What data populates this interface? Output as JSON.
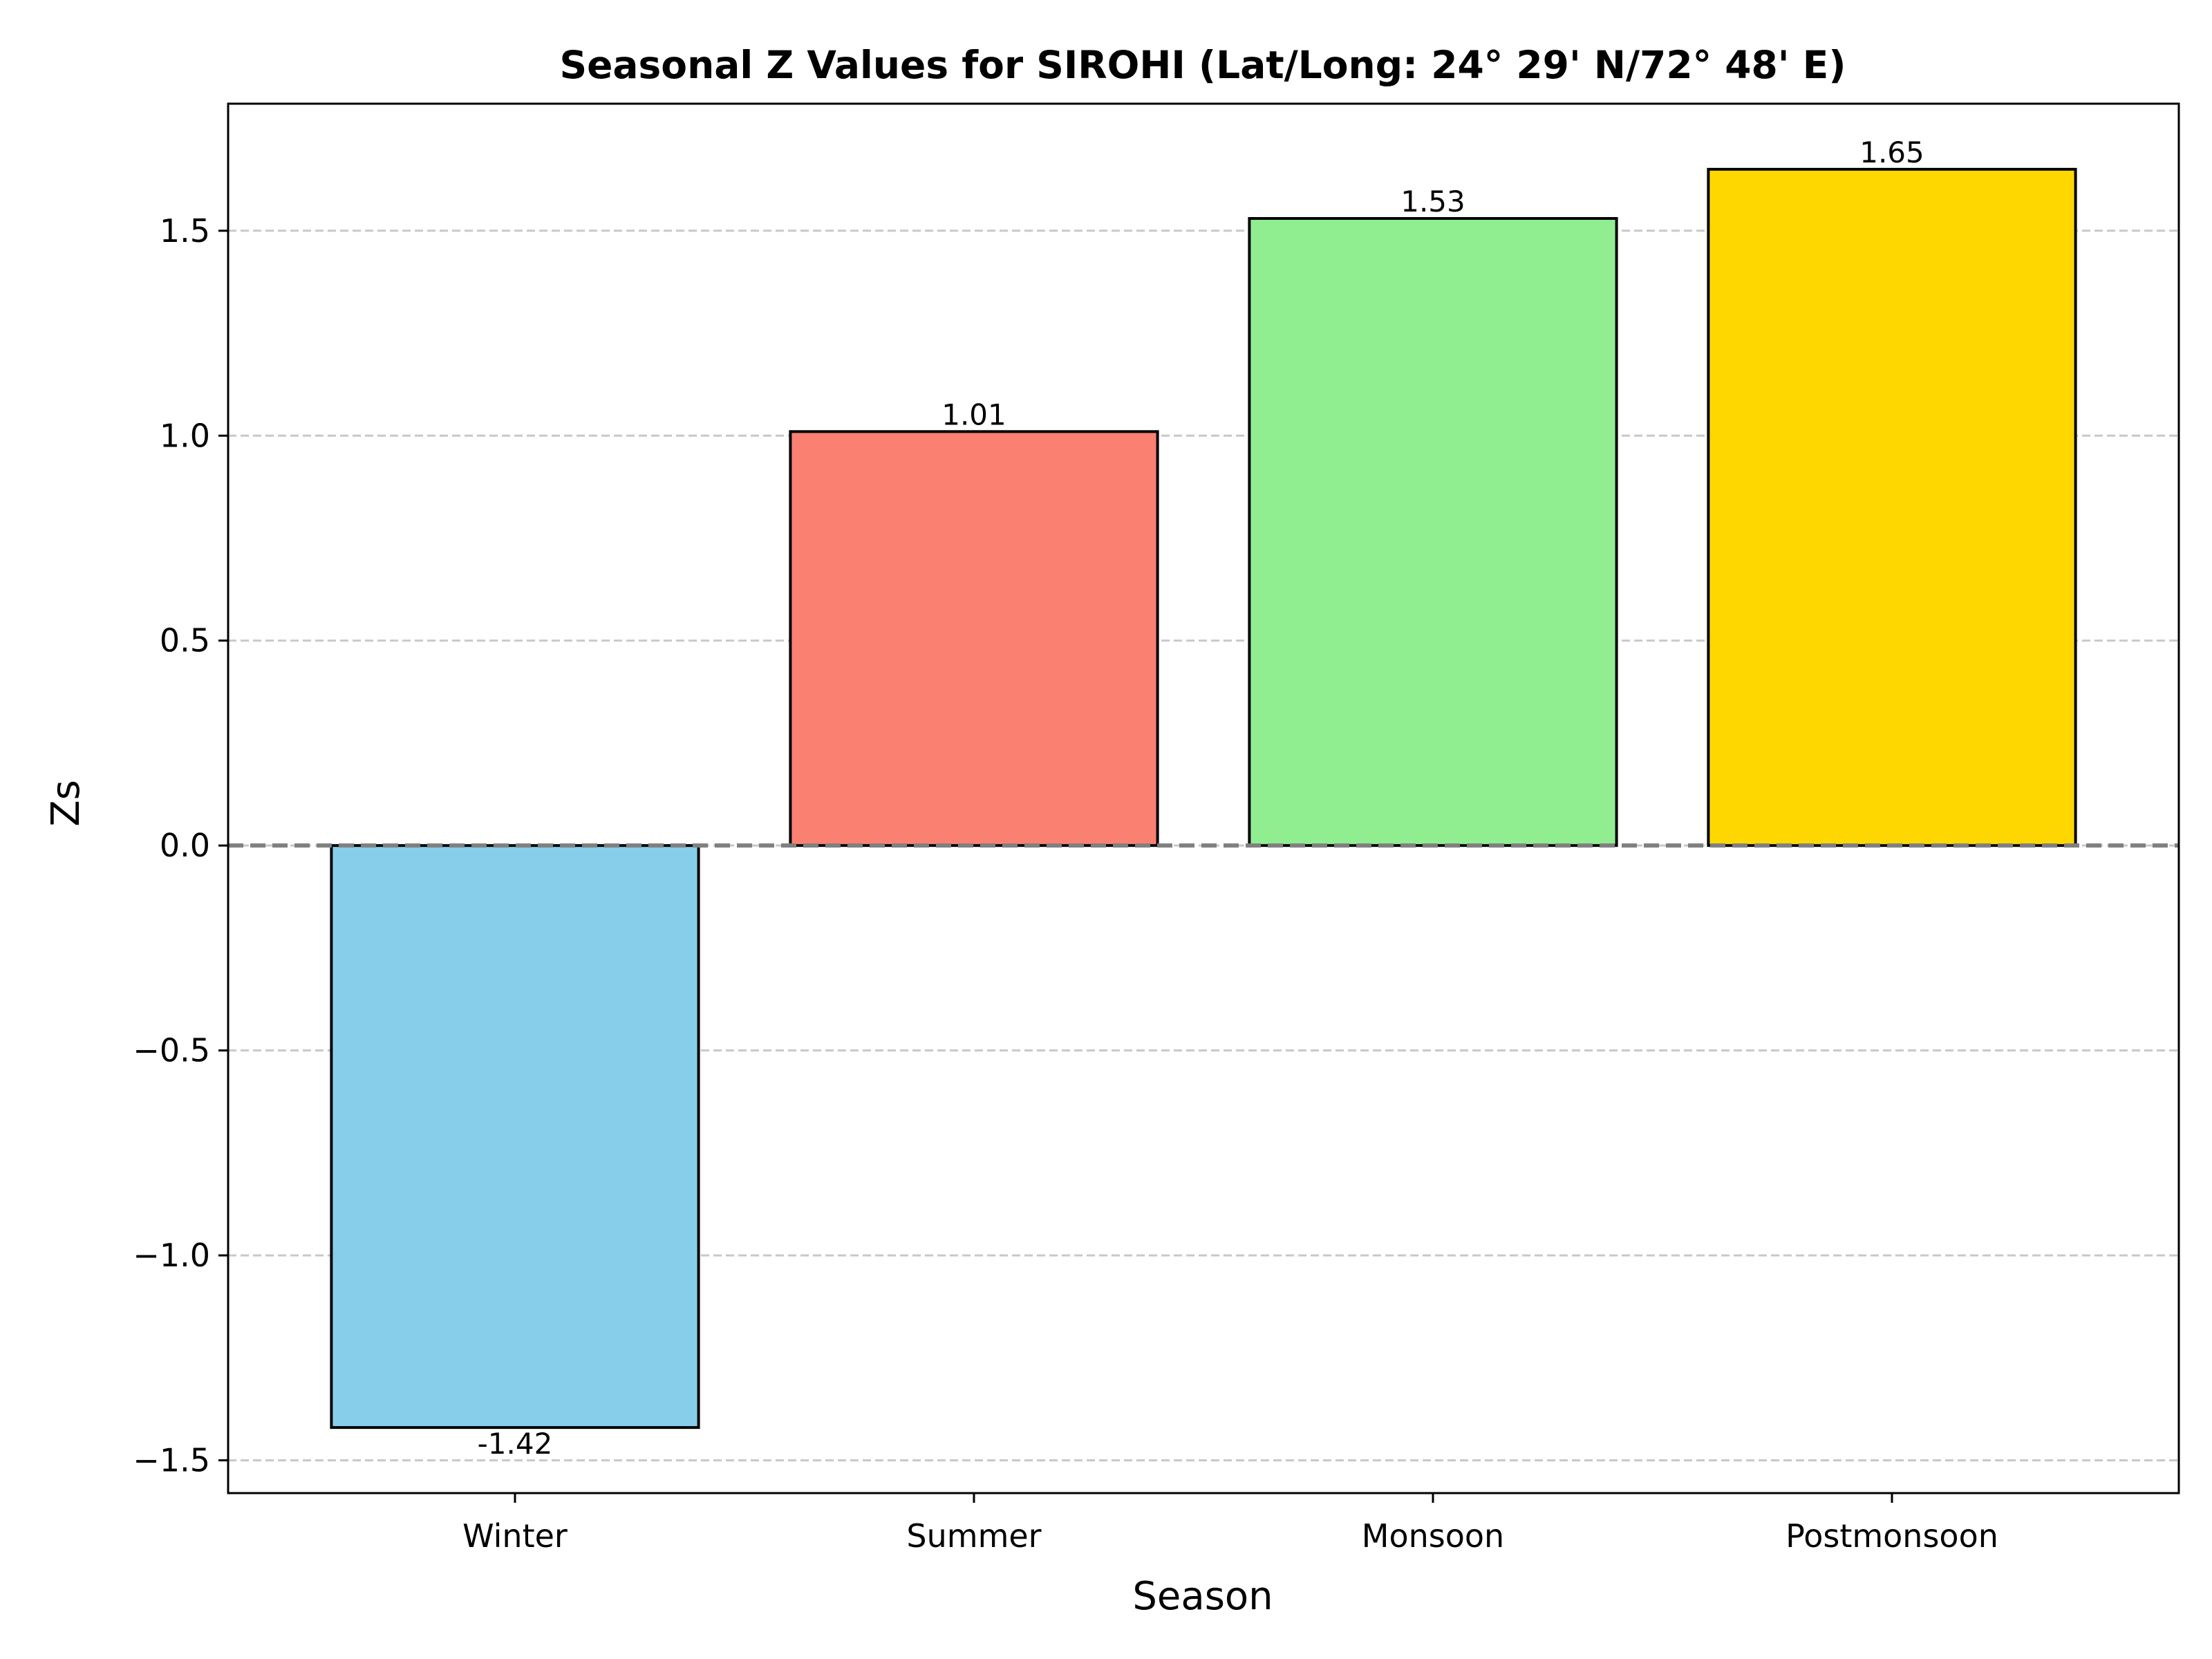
{
  "chart_data": {
    "type": "bar",
    "title": "Seasonal Z Values for SIROHI (Lat/Long: 24° 29' N/72° 48' E)",
    "xlabel": "Season",
    "ylabel": "Zs",
    "categories": [
      "Winter",
      "Summer",
      "Monsoon",
      "Postmonsoon"
    ],
    "values": [
      -1.42,
      1.01,
      1.53,
      1.65
    ],
    "value_labels": [
      "-1.42",
      "1.01",
      "1.53",
      "1.65"
    ],
    "colors": [
      "#87CEEB",
      "#FA8072",
      "#90EE90",
      "#FFD700"
    ],
    "ylim": [
      -1.58,
      1.81
    ],
    "yticks": [
      -1.5,
      -1.0,
      -0.5,
      0.0,
      0.5,
      1.0,
      1.5
    ],
    "ytick_labels": [
      "−1.5",
      "−1.0",
      "−0.5",
      "0.0",
      "0.5",
      "1.0",
      "1.5"
    ],
    "grid": "y-dashed",
    "reference_line": 0,
    "legend": "none"
  }
}
